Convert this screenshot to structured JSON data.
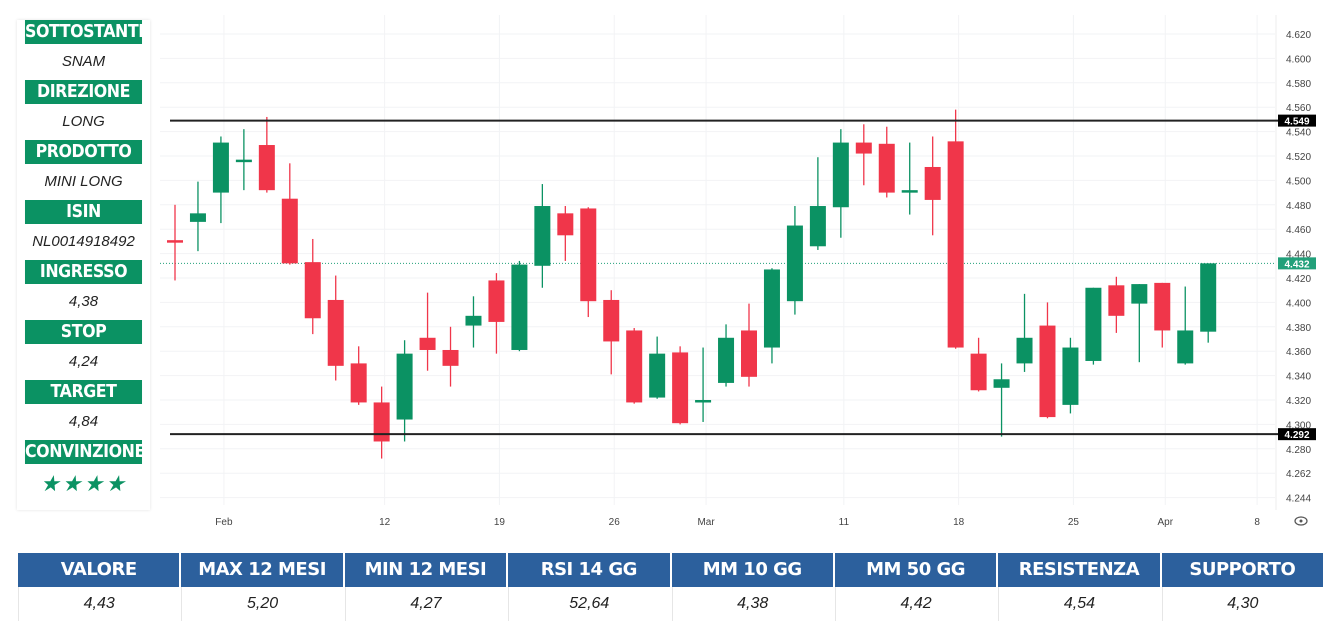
{
  "panel": {
    "rows": [
      {
        "label": "SOTTOSTANTE",
        "value": "SNAM"
      },
      {
        "label": "DIREZIONE",
        "value": "LONG"
      },
      {
        "label": "PRODOTTO",
        "value": "MINI LONG"
      },
      {
        "label": "ISIN",
        "value": "NL0014918492"
      },
      {
        "label": "INGRESSO",
        "value": "4,38"
      },
      {
        "label": "STOP",
        "value": "4,24"
      },
      {
        "label": "TARGET",
        "value": "4,84"
      }
    ],
    "conviction_label": "CONVINZIONE",
    "conviction_stars": "★★★★",
    "conviction_rating": 4
  },
  "table": {
    "headers": [
      "VALORE",
      "MAX 12 MESI",
      "MIN 12 MESI",
      "RSI 14 GG",
      "MM 10 GG",
      "MM 50 GG",
      "RESISTENZA",
      "SUPPORTO"
    ],
    "values": [
      "4,43",
      "5,20",
      "4,27",
      "52,64",
      "4,38",
      "4,42",
      "4,54",
      "4,30"
    ]
  },
  "colors": {
    "up": "#0b9263",
    "down": "#f0364a",
    "panel_header": "#0b9263",
    "table_header": "#2c609d",
    "last_price": "#22a07a"
  },
  "chart_data": {
    "type": "candlestick",
    "ylim": [
      4.24,
      4.63
    ],
    "y_tick_labels": [
      "4.620",
      "4.600",
      "4.580",
      "4.560",
      "4.540",
      "4.520",
      "4.500",
      "4.480",
      "4.460",
      "4.440",
      "4.420",
      "4.400",
      "4.380",
      "4.360",
      "4.340",
      "4.320",
      "4.300",
      "4.280",
      "4.262",
      "4.244"
    ],
    "x_ticks": [
      {
        "label": "Feb",
        "candle": 3
      },
      {
        "label": "12",
        "candle": 10
      },
      {
        "label": "19",
        "candle": 15
      },
      {
        "label": "26",
        "candle": 20
      },
      {
        "label": "Mar",
        "candle": 24
      },
      {
        "label": "11",
        "candle": 30
      },
      {
        "label": "18",
        "candle": 35
      },
      {
        "label": "25",
        "candle": 40
      },
      {
        "label": "Apr",
        "candle": 44
      },
      {
        "label": "8",
        "candle": 48
      }
    ],
    "grid": true,
    "horizontal_lines": [
      {
        "value": 4.549,
        "label": "4.549"
      },
      {
        "value": 4.292,
        "label": "4.292"
      }
    ],
    "last_price": {
      "value": 4.432,
      "label": "4.432"
    },
    "ohlc": [
      [
        4.451,
        4.48,
        4.418,
        4.449
      ],
      [
        4.466,
        4.499,
        4.442,
        4.473
      ],
      [
        4.49,
        4.536,
        4.465,
        4.531
      ],
      [
        4.516,
        4.542,
        4.492,
        4.517
      ],
      [
        4.529,
        4.552,
        4.49,
        4.492
      ],
      [
        4.485,
        4.514,
        4.431,
        4.432
      ],
      [
        4.433,
        4.452,
        4.374,
        4.387
      ],
      [
        4.402,
        4.422,
        4.336,
        4.348
      ],
      [
        4.35,
        4.364,
        4.316,
        4.318
      ],
      [
        4.318,
        4.331,
        4.272,
        4.286
      ],
      [
        4.304,
        4.369,
        4.286,
        4.358
      ],
      [
        4.371,
        4.408,
        4.344,
        4.361
      ],
      [
        4.361,
        4.38,
        4.331,
        4.348
      ],
      [
        4.381,
        4.405,
        4.363,
        4.389
      ],
      [
        4.418,
        4.424,
        4.358,
        4.384
      ],
      [
        4.361,
        4.434,
        4.36,
        4.431
      ],
      [
        4.43,
        4.497,
        4.412,
        4.479
      ],
      [
        4.473,
        4.479,
        4.434,
        4.455
      ],
      [
        4.477,
        4.478,
        4.388,
        4.401
      ],
      [
        4.402,
        4.41,
        4.341,
        4.368
      ],
      [
        4.377,
        4.379,
        4.317,
        4.318
      ],
      [
        4.322,
        4.372,
        4.321,
        4.358
      ],
      [
        4.359,
        4.364,
        4.3,
        4.301
      ],
      [
        4.318,
        4.363,
        4.302,
        4.32
      ],
      [
        4.334,
        4.382,
        4.331,
        4.371
      ],
      [
        4.377,
        4.399,
        4.331,
        4.339
      ],
      [
        4.363,
        4.428,
        4.35,
        4.427
      ],
      [
        4.401,
        4.479,
        4.39,
        4.463
      ],
      [
        4.446,
        4.519,
        4.443,
        4.479
      ],
      [
        4.478,
        4.542,
        4.453,
        4.531
      ],
      [
        4.531,
        4.546,
        4.496,
        4.522
      ],
      [
        4.53,
        4.544,
        4.486,
        4.49
      ],
      [
        4.491,
        4.531,
        4.472,
        4.492
      ],
      [
        4.511,
        4.536,
        4.455,
        4.484
      ],
      [
        4.532,
        4.558,
        4.362,
        4.363
      ],
      [
        4.358,
        4.371,
        4.327,
        4.328
      ],
      [
        4.33,
        4.35,
        4.29,
        4.337
      ],
      [
        4.35,
        4.407,
        4.343,
        4.371
      ],
      [
        4.381,
        4.4,
        4.305,
        4.306
      ],
      [
        4.316,
        4.371,
        4.309,
        4.363
      ],
      [
        4.352,
        4.412,
        4.349,
        4.412
      ],
      [
        4.414,
        4.421,
        4.375,
        4.389
      ],
      [
        4.399,
        4.415,
        4.351,
        4.415
      ],
      [
        4.416,
        4.416,
        4.363,
        4.377
      ],
      [
        4.35,
        4.413,
        4.349,
        4.377
      ],
      [
        4.376,
        4.432,
        4.367,
        4.432
      ]
    ]
  }
}
